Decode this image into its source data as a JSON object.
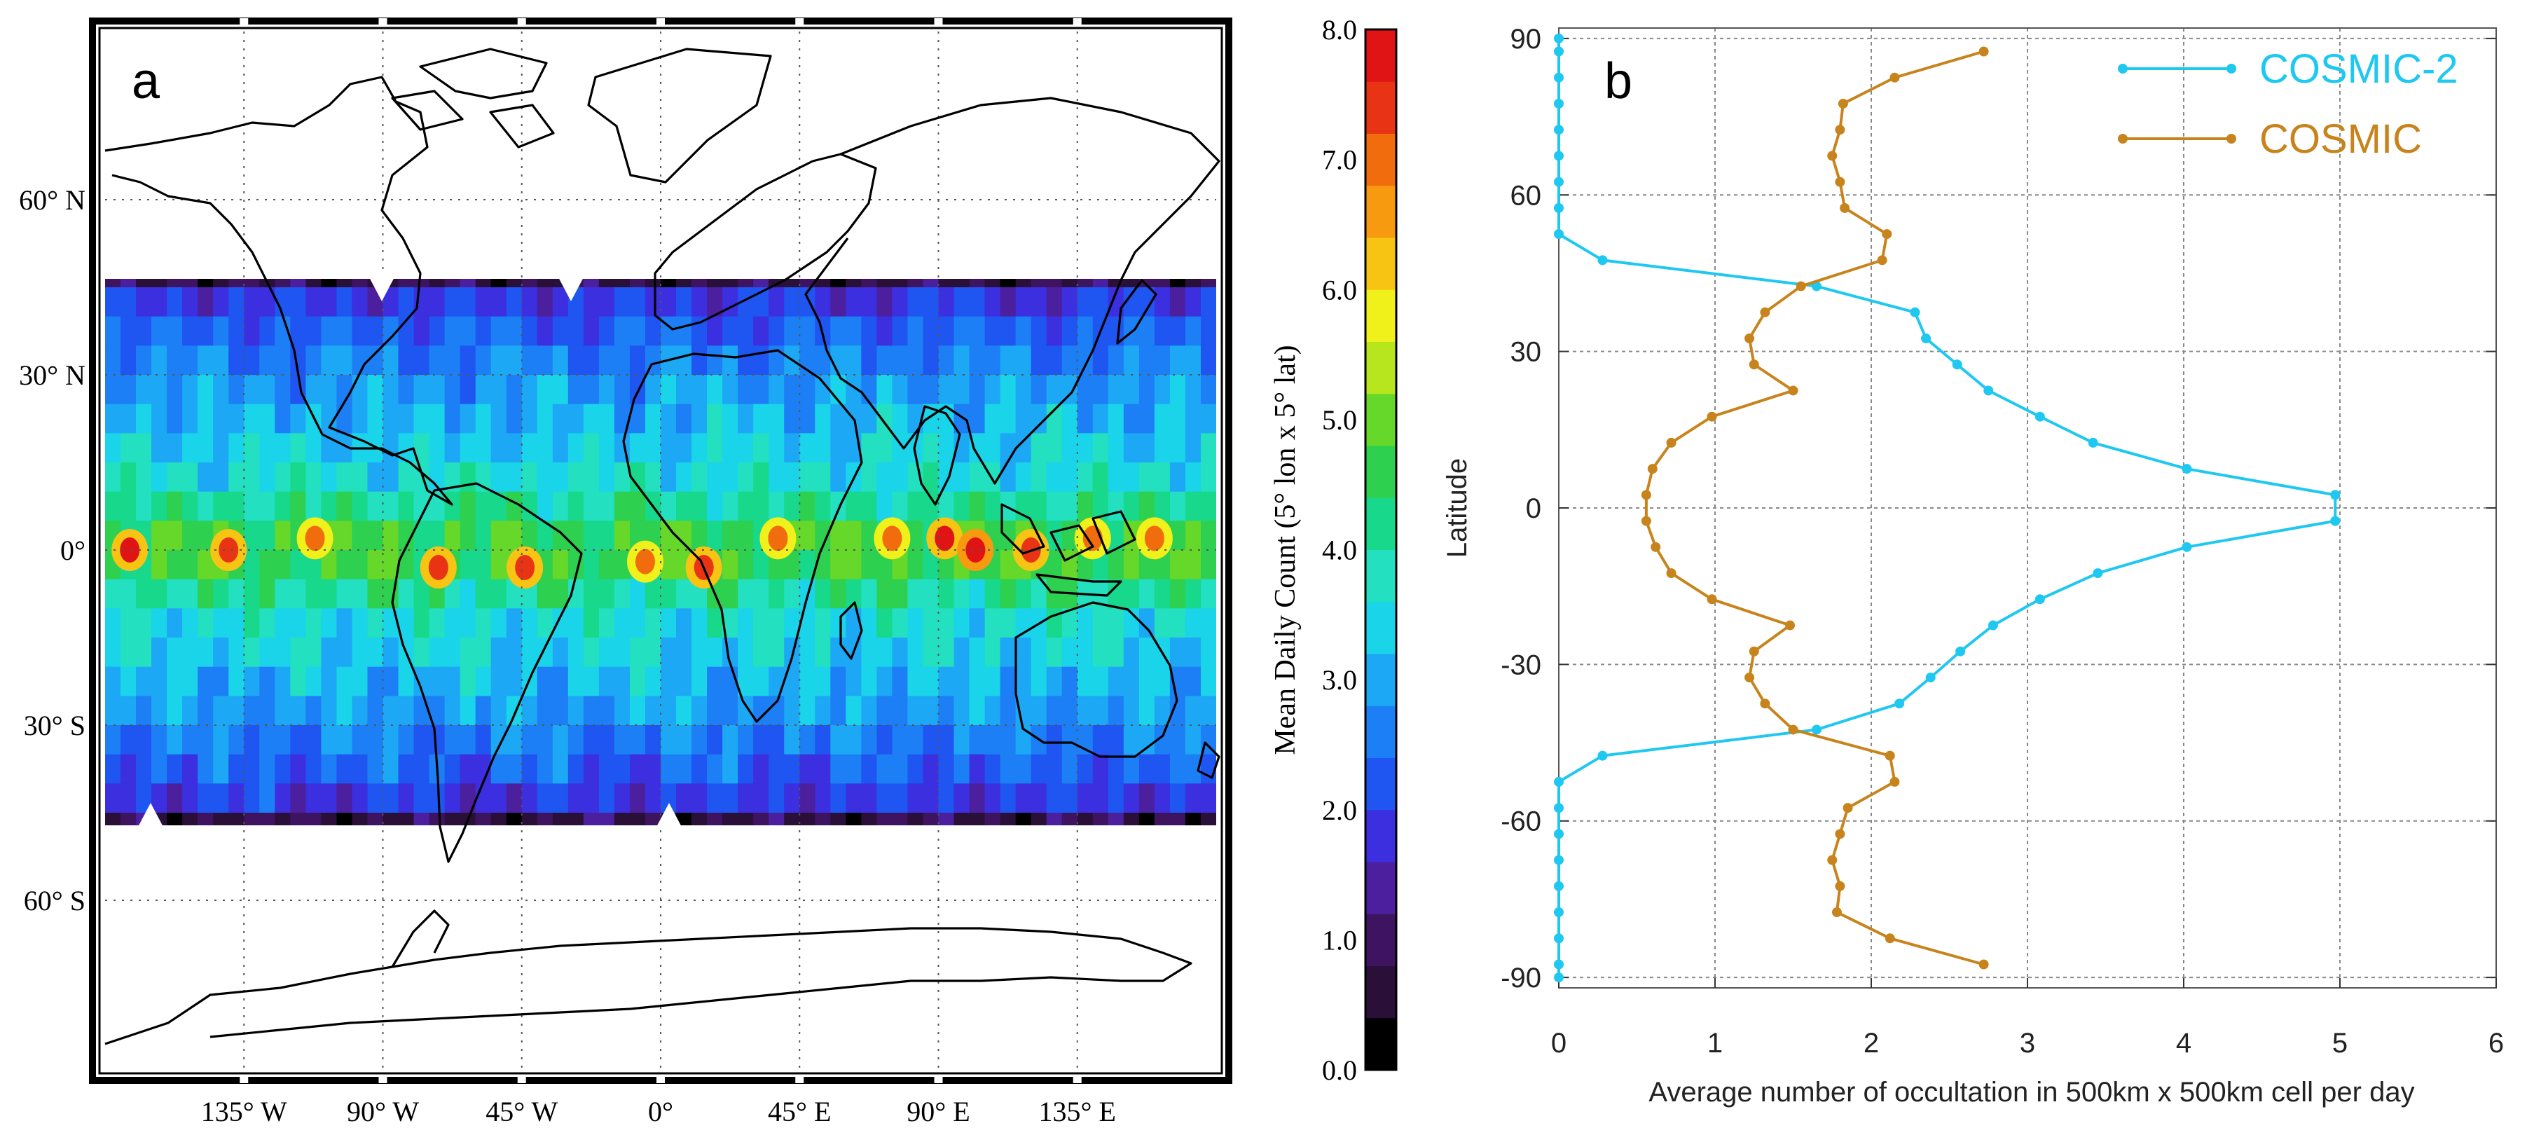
{
  "chart_data": [
    {
      "type": "heatmap",
      "panel_label": "a",
      "title": "",
      "colorbar": {
        "label": "Mean Daily Count (5° lon x 5° lat)",
        "min": 0.0,
        "max": 8.0,
        "step": 0.5,
        "tick_labels": [
          "0.0",
          "1.0",
          "2.0",
          "3.0",
          "4.0",
          "5.0",
          "6.0",
          "7.0",
          "8.0"
        ],
        "colors": [
          "#000000",
          "#2a0f38",
          "#3e1460",
          "#4b1f9e",
          "#3b2fe0",
          "#1f55f0",
          "#1d7ff5",
          "#1ca8f5",
          "#1ad4ea",
          "#22e0c0",
          "#18d88c",
          "#2ed050",
          "#66d82a",
          "#b8e61e",
          "#f0f01a",
          "#f8c414",
          "#f89a10",
          "#f06c0c",
          "#e83414",
          "#e01414"
        ]
      },
      "x_tick_labels": [
        "135° W",
        "90° W",
        "45° W",
        "0°",
        "45° E",
        "90° E",
        "135° E"
      ],
      "y_tick_labels": [
        "60° N",
        "30° N",
        "0°",
        "30° S",
        "60° S"
      ],
      "xlim": [
        -180,
        180
      ],
      "ylim": [
        -90,
        90
      ],
      "data_lat_range": [
        -50,
        50
      ],
      "data_description_by_latitude": {
        "lat": [
          47.5,
          42.5,
          37.5,
          32.5,
          27.5,
          22.5,
          17.5,
          12.5,
          7.5,
          2.5,
          -2.5,
          -7.5,
          -12.5,
          -17.5,
          -22.5,
          -27.5,
          -32.5,
          -37.5,
          -42.5,
          -47.5
        ],
        "mean_count": [
          0.8,
          1.9,
          2.3,
          2.6,
          2.9,
          3.1,
          3.4,
          3.6,
          4.1,
          4.6,
          4.6,
          4.1,
          3.6,
          3.4,
          3.1,
          2.9,
          2.6,
          2.3,
          1.9,
          0.8
        ]
      }
    },
    {
      "type": "line",
      "panel_label": "b",
      "title": "",
      "xlabel": "Average number of occultation in 500km x 500km cell per day",
      "ylabel": "Latitude",
      "xlim": [
        0,
        6
      ],
      "ylim": [
        -92,
        92
      ],
      "x_ticks": [
        0,
        1,
        2,
        3,
        4,
        5,
        6
      ],
      "y_ticks": [
        -90,
        -60,
        -30,
        0,
        30,
        60,
        90
      ],
      "grid": true,
      "legend_position": "top-right",
      "series": [
        {
          "name": "COSMIC-2",
          "color": "#1ec8f0",
          "lat": [
            90,
            87.5,
            82.5,
            77.5,
            72.5,
            67.5,
            62.5,
            57.5,
            52.5,
            47.5,
            42.5,
            37.5,
            32.5,
            27.5,
            22.5,
            17.5,
            12.5,
            7.5,
            2.5,
            -2.5,
            -7.5,
            -12.5,
            -17.5,
            -22.5,
            -27.5,
            -32.5,
            -37.5,
            -42.5,
            -47.5,
            -52.5,
            -57.5,
            -62.5,
            -67.5,
            -72.5,
            -77.5,
            -82.5,
            -87.5,
            -90
          ],
          "values": [
            0.0,
            0.0,
            0.0,
            0.0,
            0.0,
            0.0,
            0.0,
            0.0,
            0.0,
            0.28,
            1.65,
            2.28,
            2.35,
            2.55,
            2.75,
            3.08,
            3.42,
            4.02,
            4.97,
            4.97,
            4.02,
            3.45,
            3.08,
            2.78,
            2.57,
            2.38,
            2.18,
            1.65,
            0.28,
            0.0,
            0.0,
            0.0,
            0.0,
            0.0,
            0.0,
            0.0,
            0.0,
            0.0
          ]
        },
        {
          "name": "COSMIC",
          "color": "#c8841c",
          "lat": [
            87.5,
            82.5,
            77.5,
            72.5,
            67.5,
            62.5,
            57.5,
            52.5,
            47.5,
            42.5,
            37.5,
            32.5,
            27.5,
            22.5,
            17.5,
            12.5,
            7.5,
            2.5,
            -2.5,
            -7.5,
            -12.5,
            -17.5,
            -22.5,
            -27.5,
            -32.5,
            -37.5,
            -42.5,
            -47.5,
            -52.5,
            -57.5,
            -62.5,
            -67.5,
            -72.5,
            -77.5,
            -82.5,
            -87.5
          ],
          "values": [
            2.72,
            2.15,
            1.82,
            1.8,
            1.75,
            1.8,
            1.83,
            2.1,
            2.07,
            1.55,
            1.32,
            1.22,
            1.25,
            1.5,
            0.98,
            0.72,
            0.6,
            0.56,
            0.56,
            0.62,
            0.72,
            0.98,
            1.48,
            1.25,
            1.22,
            1.32,
            1.5,
            2.12,
            2.15,
            1.85,
            1.8,
            1.75,
            1.8,
            1.78,
            2.12,
            2.72
          ]
        }
      ]
    }
  ]
}
